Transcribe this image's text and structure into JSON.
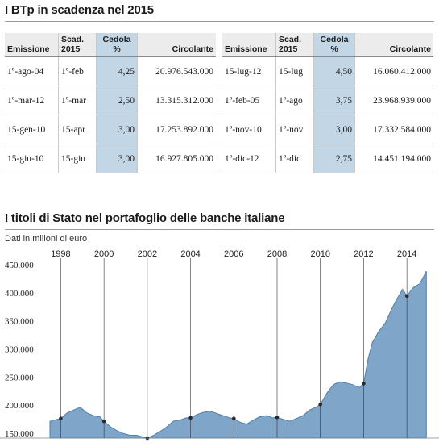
{
  "table_section": {
    "title": "I BTp in scadenza nel 2015",
    "headers": {
      "emissione": "Emissione",
      "scadenza_1": "Scad.",
      "scadenza_2": "2015",
      "cedola_1": "Cedola",
      "cedola_2": "%",
      "circolante": "Circolante"
    },
    "left_rows": [
      {
        "emissione": "1º-ago-04",
        "scadenza": "1º-feb",
        "cedola": "4,25",
        "circolante": "20.976.543.000"
      },
      {
        "emissione": "1º-mar-12",
        "scadenza": "1º-mar",
        "cedola": "2,50",
        "circolante": "13.315.312.000"
      },
      {
        "emissione": "15-gen-10",
        "scadenza": "15-apr",
        "cedola": "3,00",
        "circolante": "17.253.892.000"
      },
      {
        "emissione": "15-giu-10",
        "scadenza": "15-giu",
        "cedola": "3,00",
        "circolante": "16.927.805.000"
      }
    ],
    "right_rows": [
      {
        "emissione": "15-lug-12",
        "scadenza": "15-lug",
        "cedola": "4,50",
        "circolante": "16.060.412.000"
      },
      {
        "emissione": "1º-feb-05",
        "scadenza": "1º-ago",
        "cedola": "3,75",
        "circolante": "23.968.939.000"
      },
      {
        "emissione": "1º-nov-10",
        "scadenza": "1º-nov",
        "cedola": "3,00",
        "circolante": "17.332.584.000"
      },
      {
        "emissione": "1º-dic-12",
        "scadenza": "1º-dic",
        "cedola": "2,75",
        "circolante": "14.451.194.000"
      }
    ]
  },
  "chart_section": {
    "title": "I titoli di Stato nel portafoglio delle banche italiane",
    "subtitle": "Dati in milioni di euro"
  },
  "colors": {
    "area_fill": "#7fa5c8",
    "area_line": "#4f7fae",
    "cedola_highlight": "#c3d6e6",
    "marker": "#2a2a2a"
  },
  "chart_data": {
    "type": "area",
    "title": "I titoli di Stato nel portafoglio delle banche italiane",
    "subtitle": "Dati in milioni di euro",
    "xlabel": "",
    "ylabel": "",
    "xlim": [
      1997.5,
      2015.0
    ],
    "ylim": [
      150000,
      450000
    ],
    "x_ticks": [
      1998,
      2000,
      2002,
      2004,
      2006,
      2008,
      2010,
      2012,
      2014
    ],
    "x_tick_labels": [
      "1998",
      "2000",
      "2002",
      "2004",
      "2006",
      "2008",
      "2010",
      "2012",
      "2014"
    ],
    "y_ticks": [
      150000,
      200000,
      250000,
      300000,
      350000,
      400000,
      450000
    ],
    "y_tick_labels": [
      "150.000",
      "200.000",
      "250.000",
      "300.000",
      "350.000",
      "400.000",
      "450.000"
    ],
    "grid": {
      "vertical": true,
      "horizontal": false
    },
    "legend": "none",
    "series": [
      {
        "x": [
          1997.5,
          1998.0,
          1998.3,
          1998.6,
          1998.9,
          1999.2,
          1999.5,
          1999.8,
          2000.0,
          2000.3,
          2000.6,
          2000.9,
          2001.2,
          2001.5,
          2001.8,
          2002.0,
          2002.3,
          2002.6,
          2002.9,
          2003.2,
          2003.5,
          2003.8,
          2004.0,
          2004.3,
          2004.6,
          2004.9,
          2005.2,
          2005.5,
          2005.8,
          2006.0,
          2006.3,
          2006.6,
          2006.9,
          2007.2,
          2007.5,
          2007.8,
          2008.0,
          2008.3,
          2008.6,
          2008.9,
          2009.2,
          2009.5,
          2009.8,
          2010.0,
          2010.3,
          2010.6,
          2010.9,
          2011.2,
          2011.5,
          2011.8,
          2012.0,
          2012.2,
          2012.4,
          2012.7,
          2013.0,
          2013.3,
          2013.5,
          2013.8,
          2014.0,
          2014.3,
          2014.6,
          2014.9
        ],
        "y": [
          180000,
          185000,
          195000,
          200000,
          205000,
          195000,
          190000,
          188000,
          180000,
          170000,
          163000,
          158000,
          155000,
          155000,
          152000,
          150000,
          155000,
          162000,
          170000,
          180000,
          182000,
          186000,
          186000,
          192000,
          196000,
          198000,
          194000,
          190000,
          186000,
          185000,
          178000,
          175000,
          182000,
          188000,
          190000,
          186000,
          187000,
          183000,
          180000,
          185000,
          190000,
          200000,
          205000,
          210000,
          230000,
          245000,
          250000,
          248000,
          245000,
          240000,
          247000,
          290000,
          320000,
          340000,
          355000,
          380000,
          395000,
          415000,
          403000,
          418000,
          425000,
          447000
        ]
      }
    ],
    "markers": [
      {
        "x": 1998.0,
        "y": 185000
      },
      {
        "x": 2000.0,
        "y": 180000
      },
      {
        "x": 2002.0,
        "y": 150000
      },
      {
        "x": 2004.0,
        "y": 186000
      },
      {
        "x": 2006.0,
        "y": 185000
      },
      {
        "x": 2008.0,
        "y": 187000
      },
      {
        "x": 2010.0,
        "y": 210000
      },
      {
        "x": 2012.0,
        "y": 247000
      },
      {
        "x": 2014.0,
        "y": 403000
      }
    ]
  }
}
